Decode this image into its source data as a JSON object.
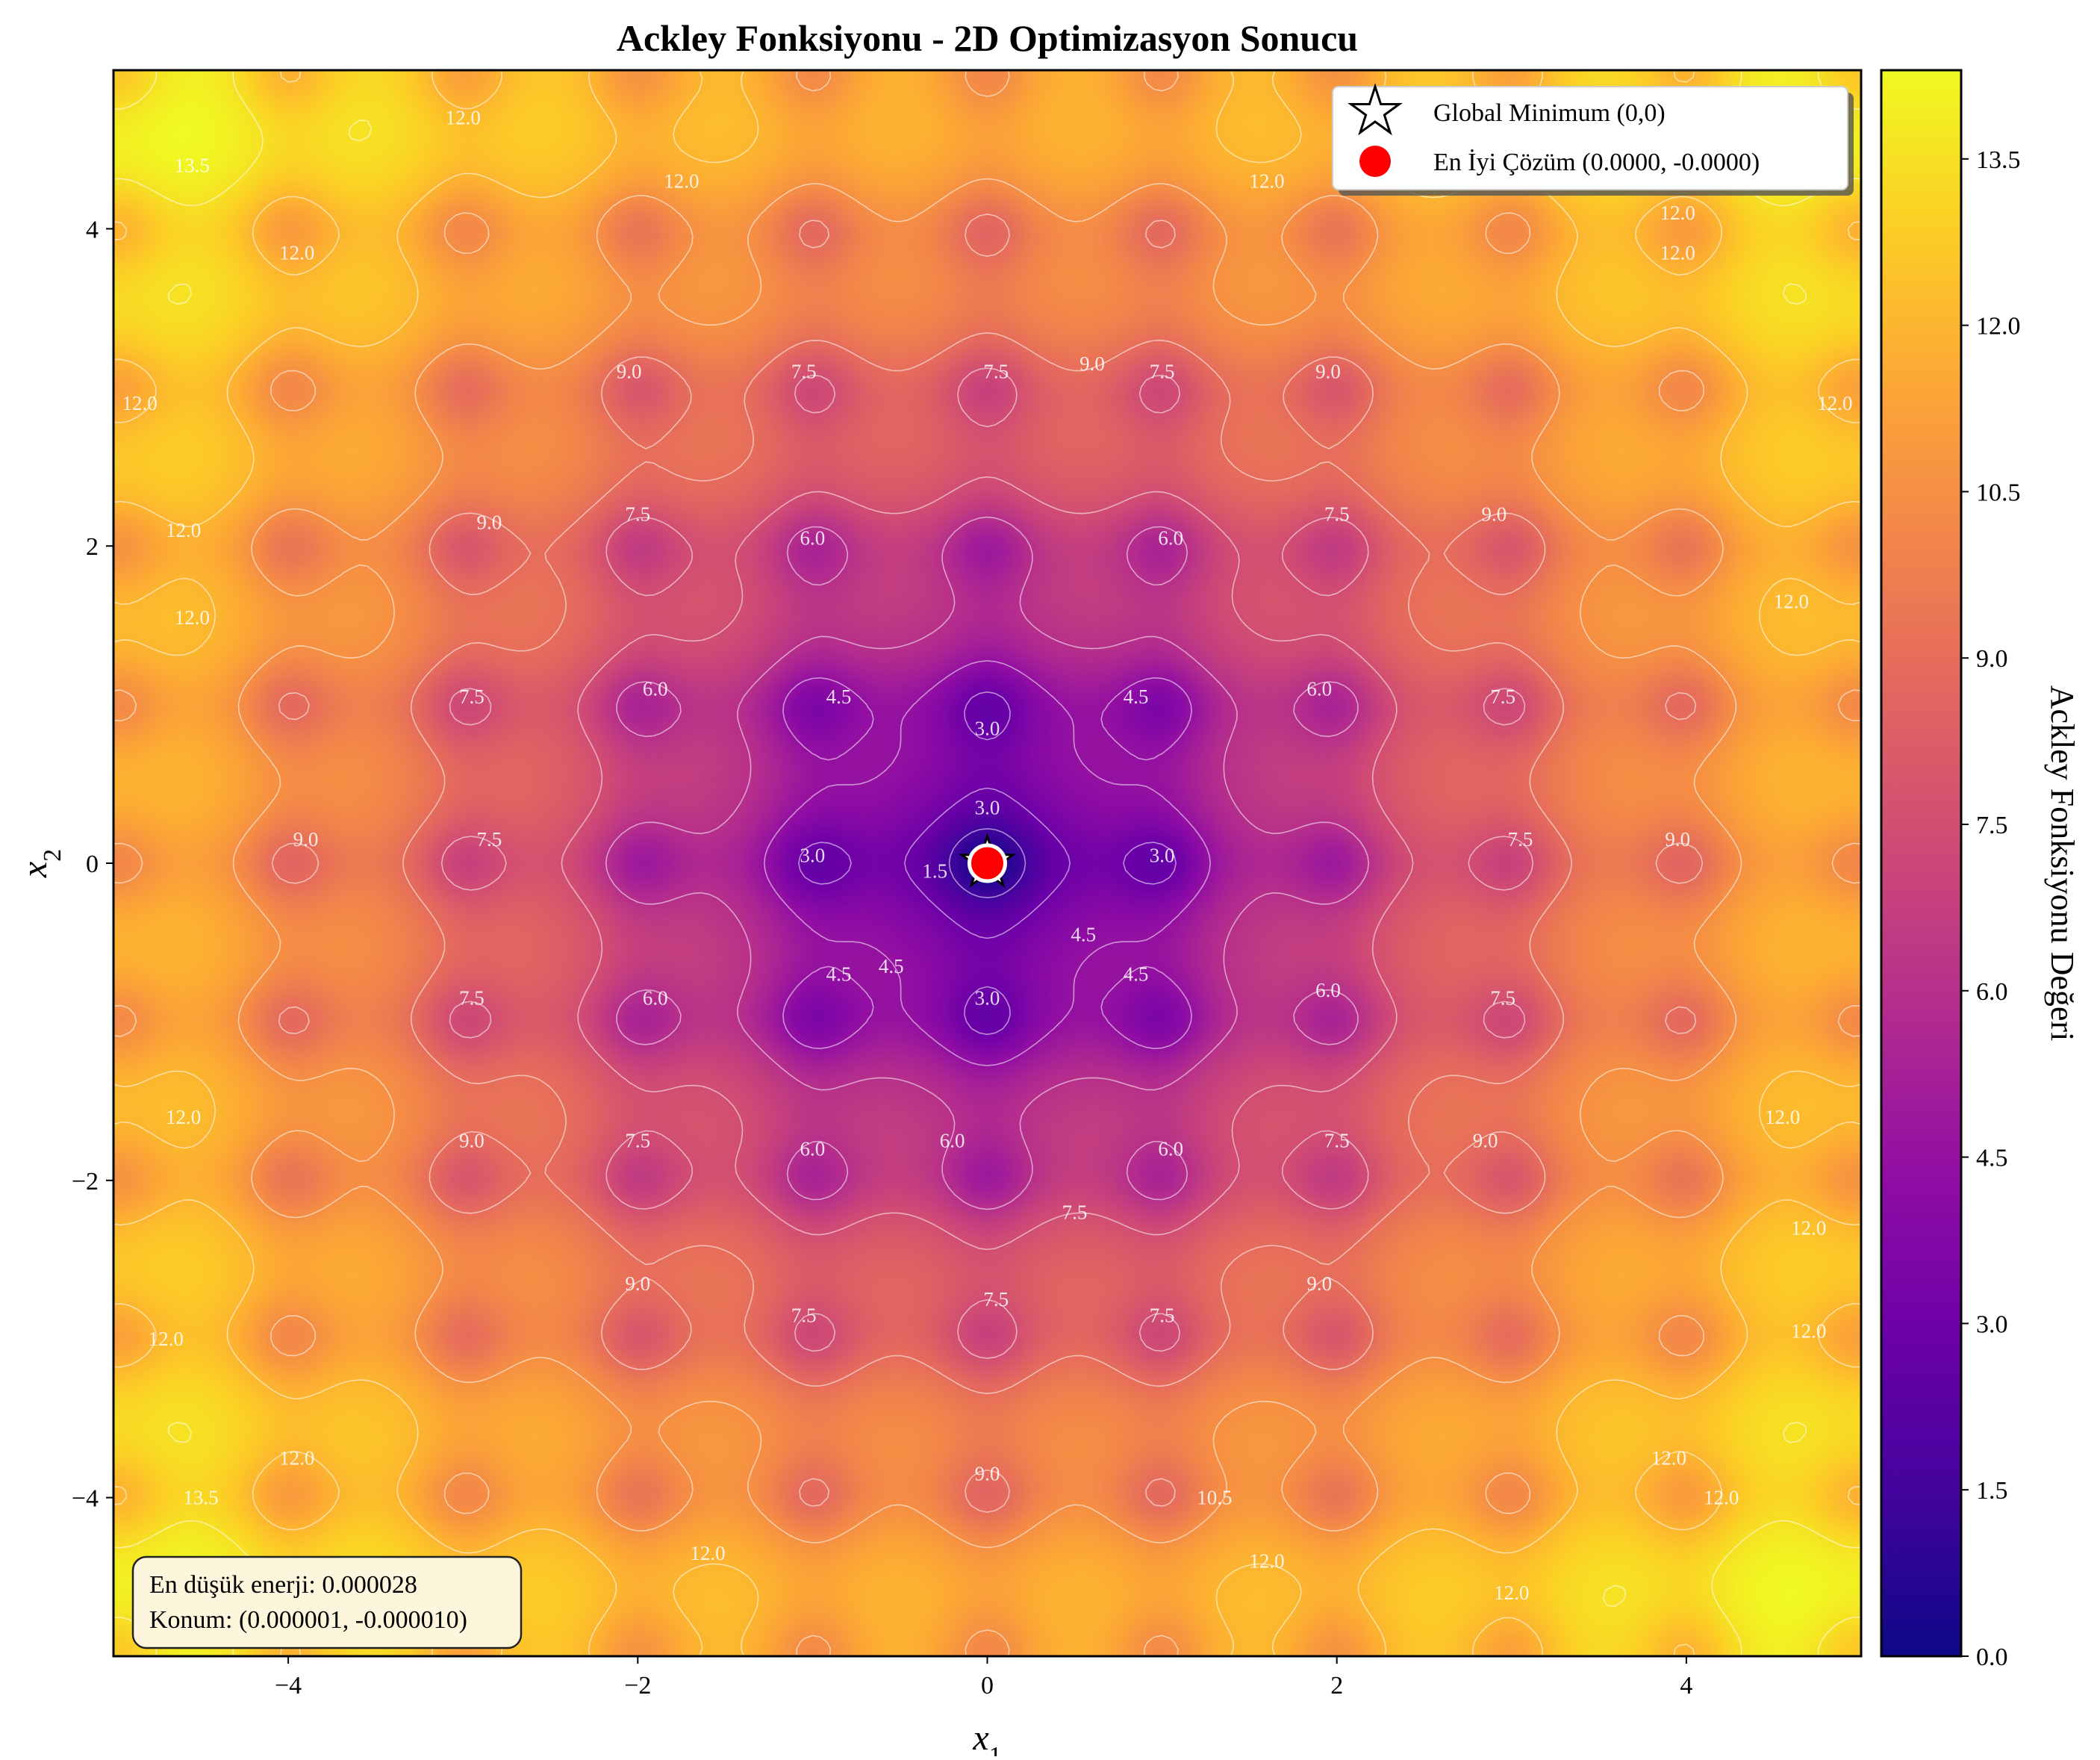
{
  "chart_data": {
    "type": "heatmap",
    "title": "Ackley Fonksiyonu - 2D Optimizasyon Sonucu",
    "function": "Ackley",
    "xlabel": "x",
    "xlabel_sub": "1",
    "ylabel": "x",
    "ylabel_sub": "2",
    "xlim": [
      -5,
      5
    ],
    "ylim": [
      -5,
      5
    ],
    "xticks": [
      -4,
      -2,
      0,
      2,
      4
    ],
    "yticks": [
      -4,
      -2,
      0,
      2,
      4
    ],
    "colormap": "plasma",
    "colorbar": {
      "label": "Ackley Fonksiyonu Değeri",
      "range": [
        0.0,
        14.3
      ],
      "ticks": [
        "0.0",
        "1.5",
        "3.0",
        "4.5",
        "6.0",
        "7.5",
        "9.0",
        "10.5",
        "12.0",
        "13.5"
      ]
    },
    "contour_levels": [
      1.5,
      3.0,
      4.5,
      6.0,
      7.5,
      9.0,
      10.5,
      12.0,
      13.5
    ],
    "contour_color": "#ffffff",
    "markers": [
      {
        "name": "Global Minimum (0,0)",
        "x": 0,
        "y": 0,
        "symbol": "star",
        "color": "#ffffff"
      },
      {
        "name": "En İyi Çözüm (0.0000, -0.0000)",
        "x": 1e-06,
        "y": -1e-05,
        "symbol": "circle",
        "color": "#ff0000"
      }
    ],
    "legend_position": "top-right",
    "annotation": {
      "lines": [
        "En düşük enerji: 0.000028",
        "Konum: (0.000001, -0.000010)"
      ],
      "position": "bottom-left",
      "background": "#fdf5dc"
    },
    "grid": false
  }
}
